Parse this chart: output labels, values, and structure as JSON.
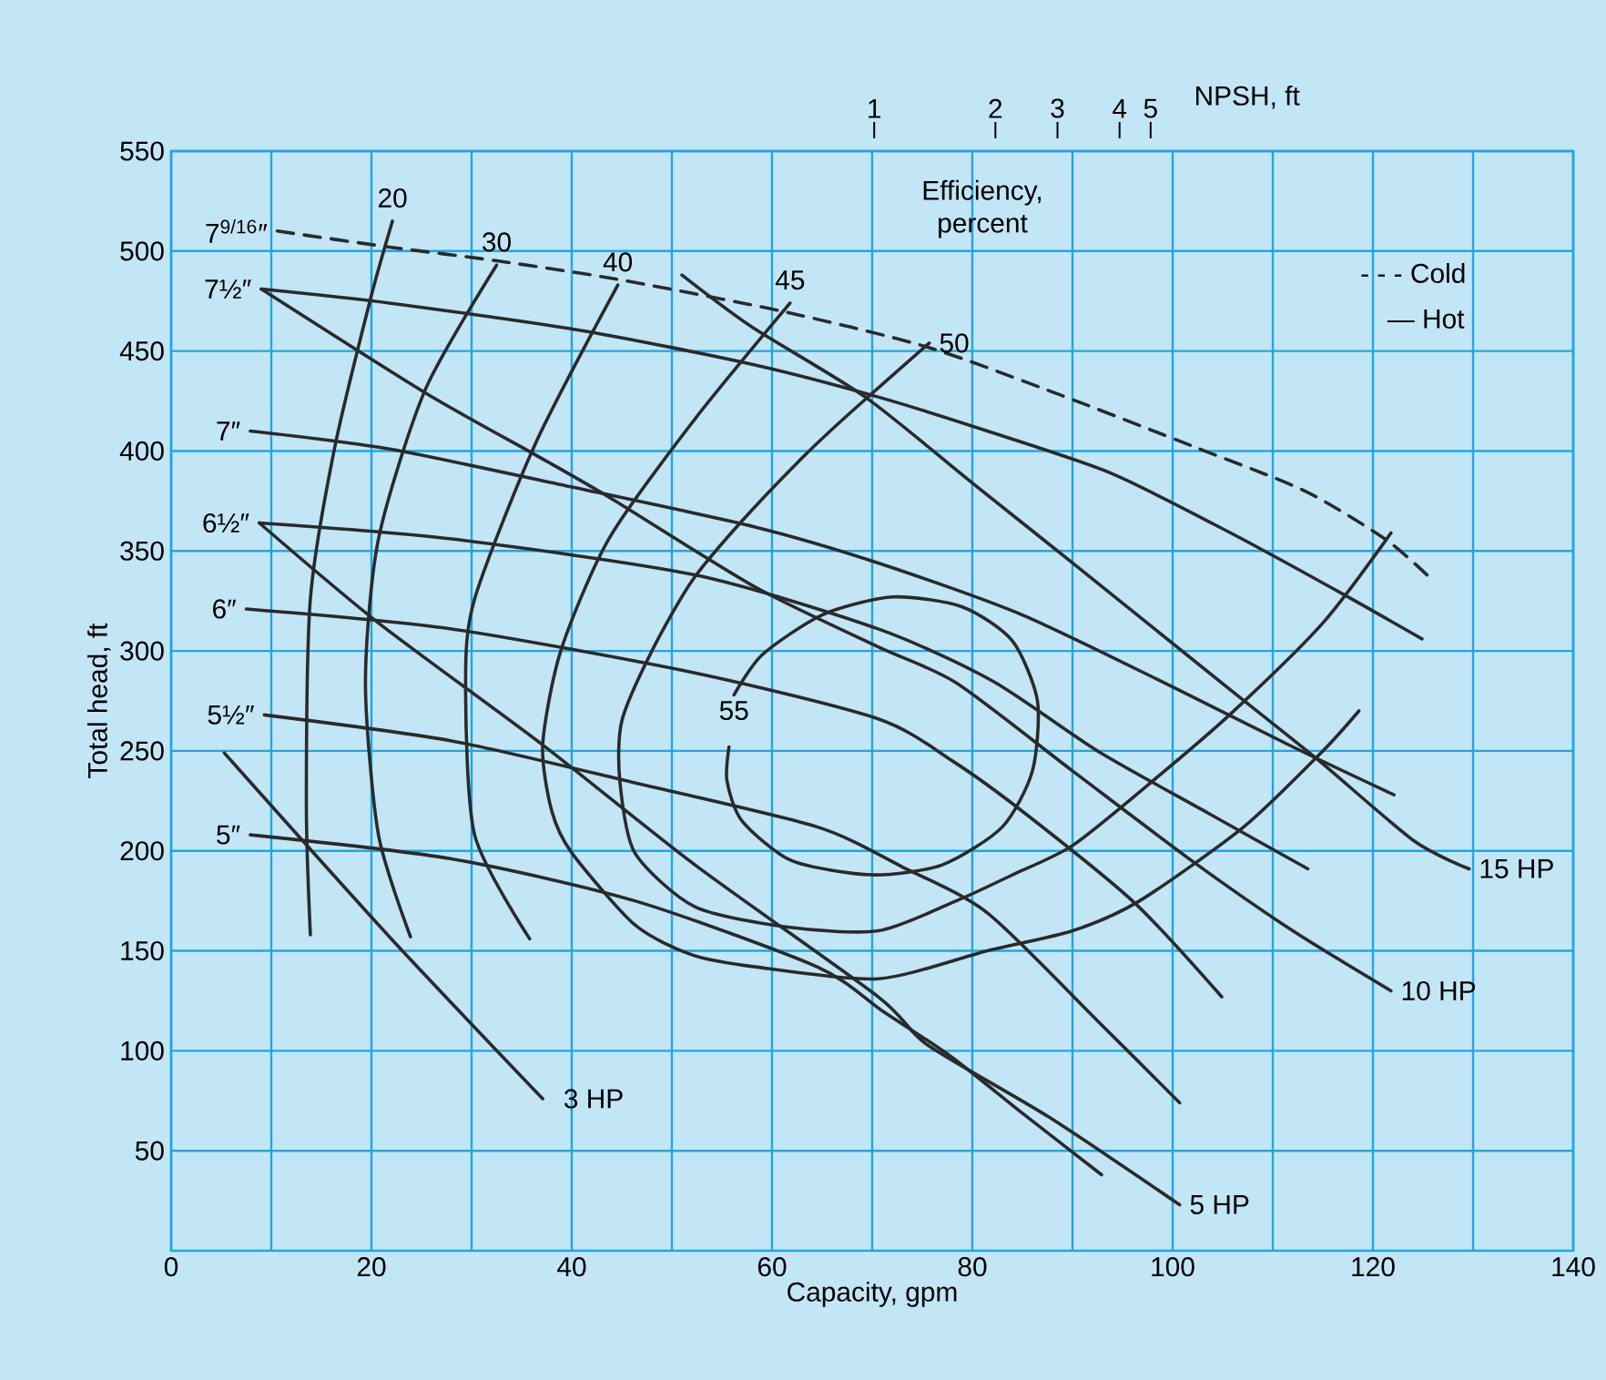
{
  "chart_data": {
    "type": "line",
    "xlabel": "Capacity, gpm",
    "ylabel": "Total head, ft",
    "xlim": [
      0,
      140
    ],
    "ylim": [
      0,
      550
    ],
    "xticks": [
      0,
      20,
      40,
      60,
      80,
      100,
      120,
      140
    ],
    "yticks": [
      50,
      100,
      150,
      200,
      250,
      300,
      350,
      400,
      450,
      500,
      550
    ],
    "grid": true,
    "line_style": "solid",
    "annotations": [
      "Efficiency, percent",
      "- - - Cold",
      "— Hot",
      "NPSH, ft",
      "1",
      "2",
      "3",
      "4",
      "5"
    ],
    "series": [
      {
        "name": "7$^{9/16}$″",
        "color": "#2a2a2a",
        "line_style": "dashed",
        "x": [
          10.6,
          21.8,
          32.7,
          44.4,
          60.9,
          75.5,
          88.8,
          102.2,
          113.2,
          121.2,
          125.4
        ],
        "values": [
          510,
          502,
          495,
          486,
          470,
          452,
          428,
          402,
          380,
          356,
          338
        ]
      },
      {
        "name": "7½″",
        "color": "#2a2a2a",
        "x": [
          9,
          21.8,
          41.3,
          58.3,
          70.6,
          81.5,
          93.8,
          105.8,
          116.8,
          124.9
        ],
        "values": [
          481,
          474,
          460,
          443,
          427,
          410,
          389,
          359,
          329,
          306
        ]
      },
      {
        "name": "7″",
        "color": "#2a2a2a",
        "x": [
          7.9,
          21.8,
          40,
          58.3,
          70.6,
          85,
          100,
          112,
          122.1
        ],
        "values": [
          410,
          401,
          382,
          362,
          344,
          318,
          282,
          252,
          228
        ]
      },
      {
        "name": "6½″",
        "color": "#2a2a2a",
        "x": [
          8.8,
          28,
          52.3,
          70.6,
          82,
          92.5,
          103.5,
          113.5
        ],
        "values": [
          364,
          356,
          338,
          311,
          285,
          250,
          219,
          191
        ]
      },
      {
        "name": "6″",
        "color": "#2a2a2a",
        "x": [
          7.5,
          28,
          52.3,
          70.6,
          78,
          85.2,
          96.2,
          104.9
        ],
        "values": [
          321,
          311,
          289,
          266,
          245,
          219,
          174,
          127
        ]
      },
      {
        "name": "5½″",
        "color": "#2a2a2a",
        "x": [
          9.3,
          28,
          46.3,
          64.5,
          73,
          81.5,
          92.5,
          100.7
        ],
        "values": [
          268,
          255,
          234,
          212,
          192,
          169,
          115,
          74
        ]
      },
      {
        "name": "5″",
        "color": "#2a2a2a",
        "x": [
          7.9,
          28,
          46.3,
          64.5,
          71,
          77.9,
          85.2,
          92.9
        ],
        "values": [
          208,
          196,
          175,
          142,
          120,
          97,
          68,
          38
        ]
      },
      {
        "name": "20",
        "color": "#2a2a2a",
        "x": [
          22.1,
          19.9,
          16.3,
          13.9,
          13.5,
          13.9
        ],
        "values": [
          515,
          476,
          401,
          326,
          223,
          158
        ]
      },
      {
        "name": "30",
        "color": "#2a2a2a",
        "x": [
          32.5,
          25.4,
          20.7,
          19.4,
          20.7,
          23.9
        ],
        "values": [
          493,
          431,
          356,
          284,
          208,
          157
        ]
      },
      {
        "name": "40",
        "color": "#2a2a2a",
        "x": [
          44.6,
          36.4,
          30.3,
          29.4,
          30.3,
          35.8
        ],
        "values": [
          483,
          404,
          326,
          284,
          208,
          156
        ]
      },
      {
        "name": "45",
        "color": "#2a2a2a",
        "x": [
          61.8,
          52.3,
          43.7,
          38.9,
          37.1,
          38,
          40,
          46.3,
          52,
          58.3,
          70.6,
          81.5,
          90,
          96.7,
          107.1,
          115,
          118.6
        ],
        "values": [
          474,
          416,
          356,
          300,
          253,
          220,
          199,
          163,
          148,
          142,
          136,
          150,
          160,
          175,
          212,
          250,
          270
        ]
      },
      {
        "name": "50",
        "color": "#2a2a2a",
        "x": [
          75.7,
          68,
          63.3,
          57,
          52,
          48,
          45,
          44.8,
          46.3,
          52.3,
          61.4,
          70.6,
          78.4,
          84,
          90.1,
          98.5,
          105.9,
          115,
          121.8
        ],
        "values": [
          454,
          420,
          398,
          365,
          335,
          300,
          265,
          235,
          199,
          172,
          162,
          160,
          175,
          188,
          203,
          237,
          269,
          314,
          359
        ]
      },
      {
        "name": "55",
        "color": "#2a2a2a",
        "x": [
          56.2,
          59,
          65,
          72,
          79,
          84,
          86.5,
          86,
          83,
          77,
          70,
          62,
          57,
          55.5,
          55.7
        ],
        "values": [
          278,
          298,
          318,
          327,
          322,
          305,
          275,
          240,
          212,
          193,
          188,
          195,
          215,
          235,
          252
        ]
      },
      {
        "name": "3 HP",
        "color": "#2a2a2a",
        "x": [
          37.1,
          21.8,
          5.3
        ],
        "values": [
          76,
          157,
          249
        ]
      },
      {
        "name": "5 HP",
        "color": "#2a2a2a",
        "x": [
          100.7,
          87.6,
          75.5,
          70.6,
          52.3,
          37.1,
          20.7,
          8.8
        ],
        "values": [
          23,
          67,
          103,
          127,
          193,
          253,
          314,
          364
        ]
      },
      {
        "name": "10 HP",
        "color": "#2a2a2a",
        "x": [
          121.8,
          112,
          102.2,
          90,
          78.4,
          70.6,
          58.3,
          43.7,
          36.4,
          25.4,
          9
        ],
        "values": [
          130,
          160,
          194,
          240,
          284,
          302,
          332,
          377,
          398,
          429,
          481
        ]
      },
      {
        "name": "15 HP",
        "color": "#2a2a2a",
        "x": [
          129.6,
          124.1,
          114.4,
          106.4,
          90,
          80,
          69.3,
          58,
          51
        ],
        "values": [
          191,
          205,
          246,
          278,
          344,
          384,
          427,
          462,
          488
        ]
      }
    ]
  }
}
